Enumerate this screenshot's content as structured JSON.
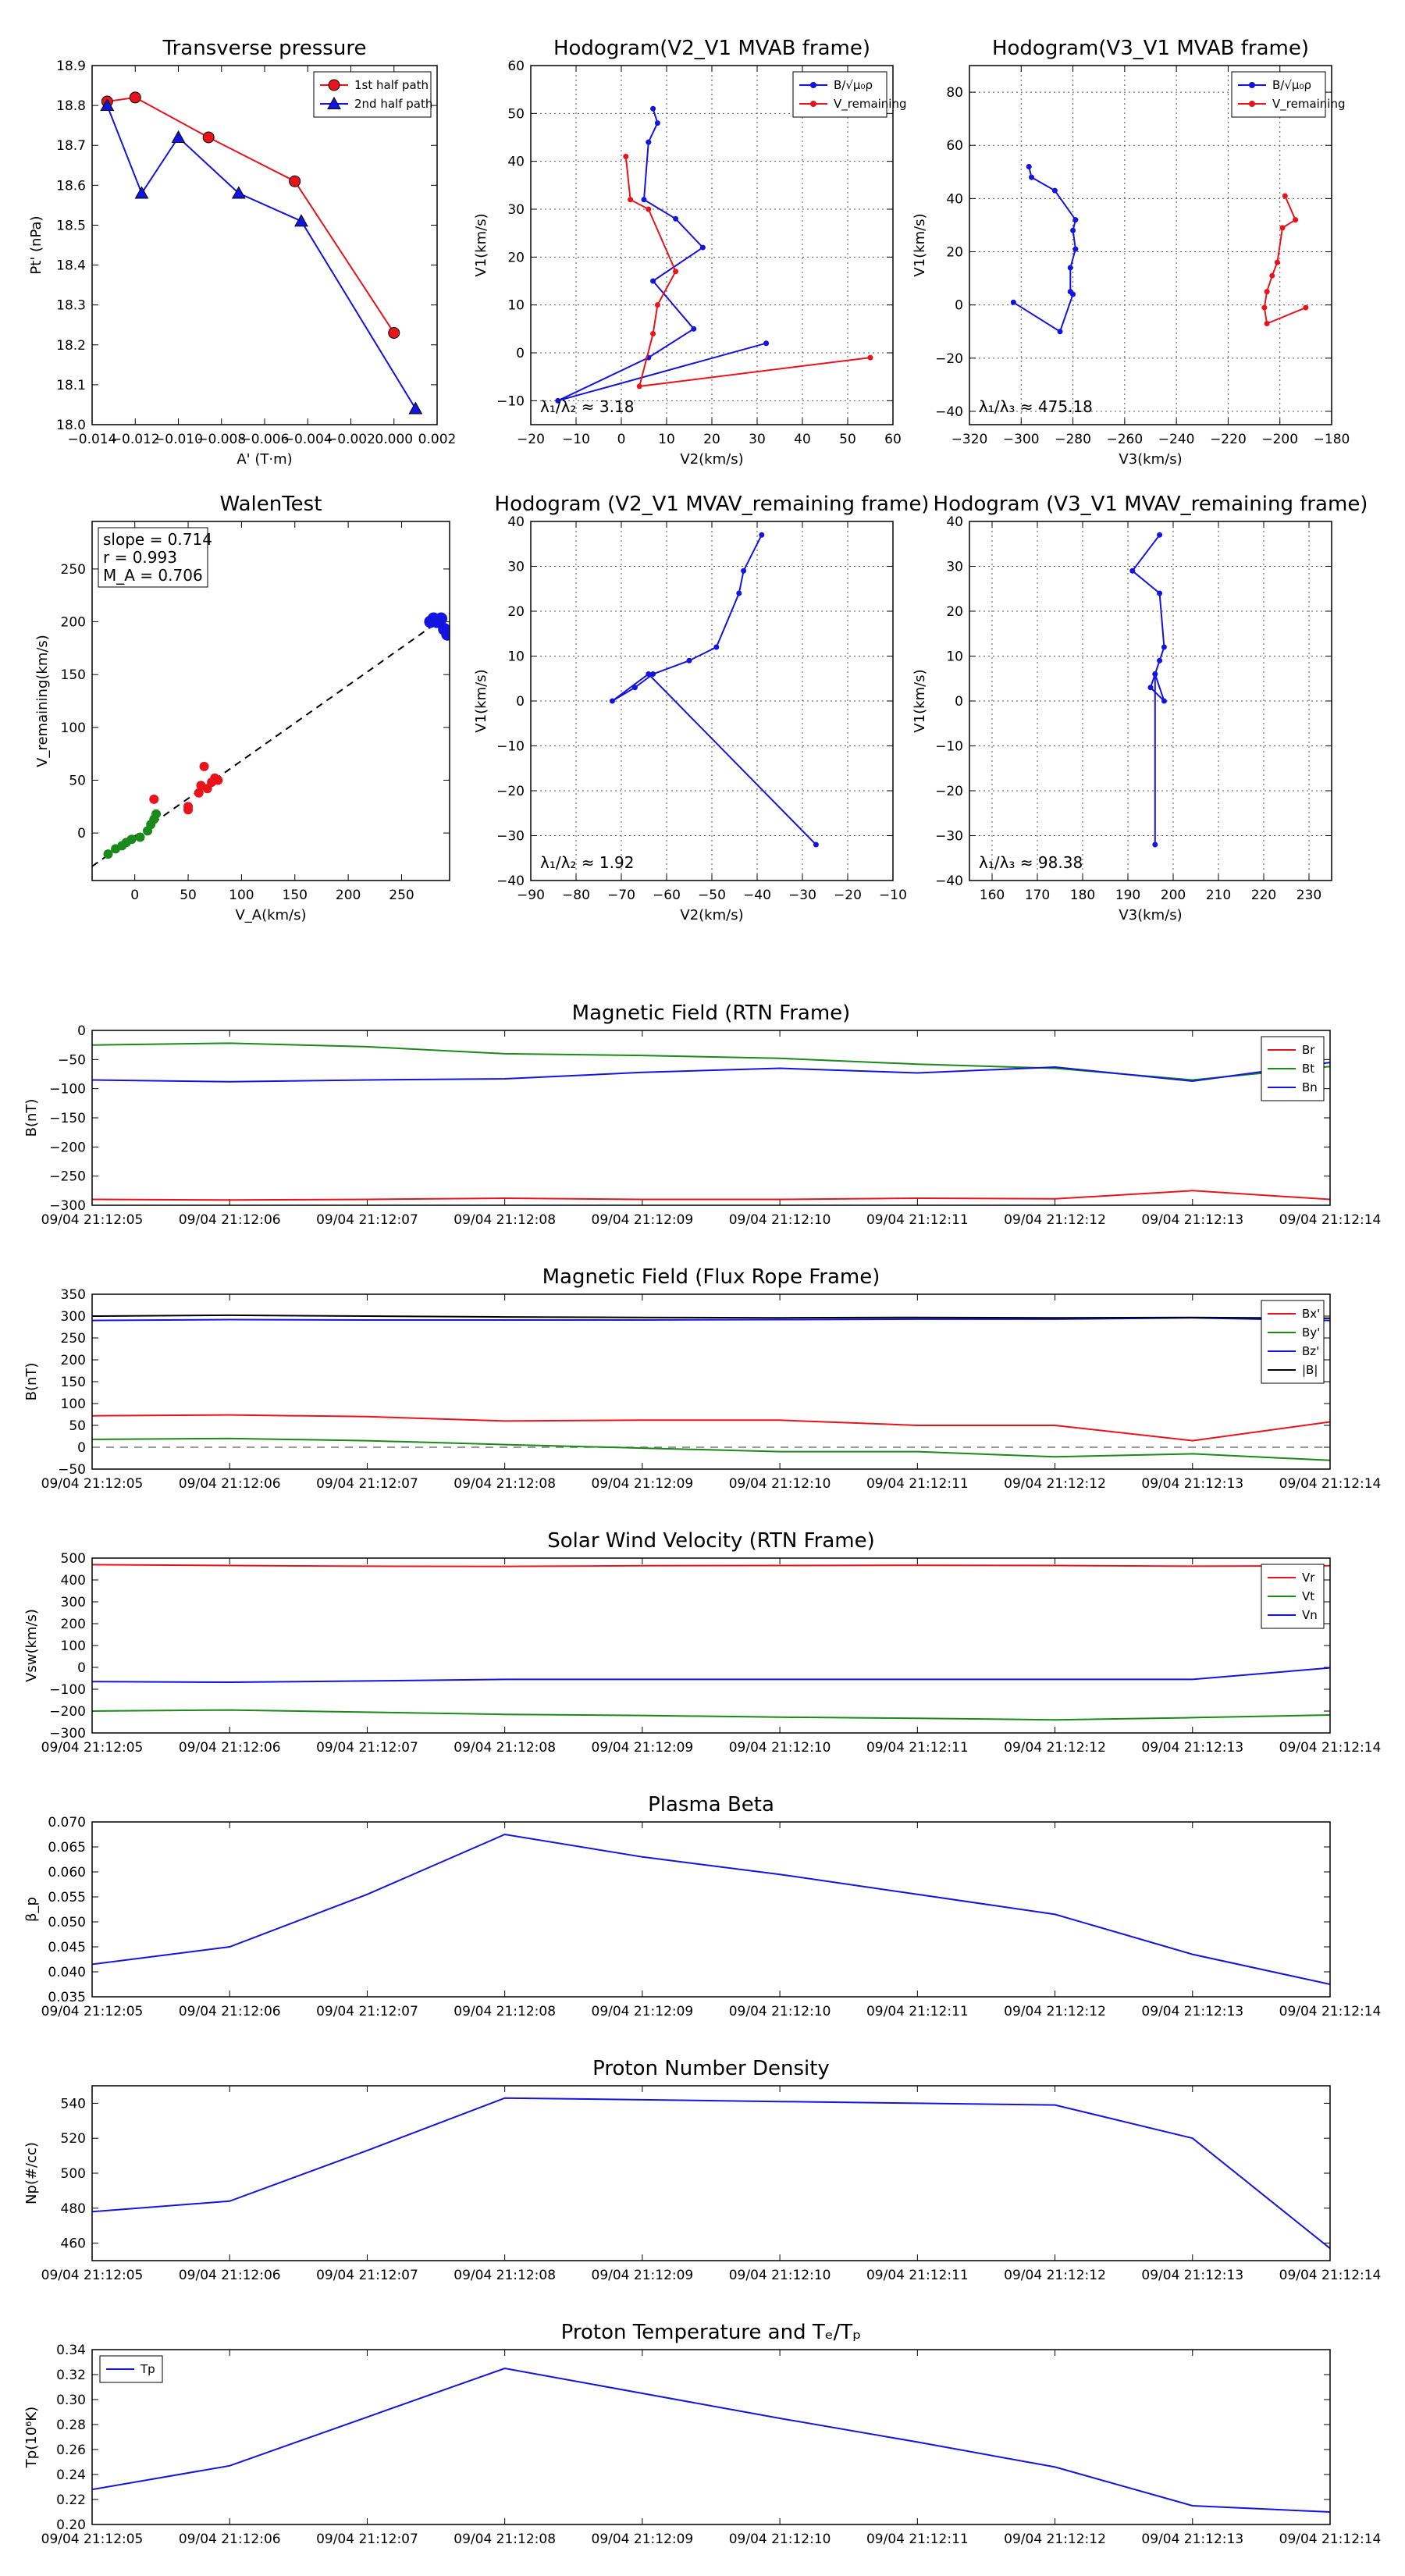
{
  "figure_labels": {
    "hodo_b_legend": "B/√μ₀ρ",
    "hodo_v_legend": "V_remaining"
  },
  "colors": {
    "red": "#e8141b",
    "green": "#1a8a1a",
    "blue": "#1414e0",
    "black": "#000000",
    "gray": "#777777"
  },
  "time_ticks": [
    "09/04 21:12:05",
    "09/04 21:12:06",
    "09/04 21:12:07",
    "09/04 21:12:08",
    "09/04 21:12:09",
    "09/04 21:12:10",
    "09/04 21:12:11",
    "09/04 21:12:12",
    "09/04 21:12:13",
    "09/04 21:12:14"
  ],
  "chart_data": [
    {
      "id": "transverse",
      "type": "line",
      "title": "Transverse pressure",
      "xlabel": "A' (T·m)",
      "ylabel": "Pt' (nPa)",
      "xlim": [
        -0.014,
        0.002
      ],
      "ylim": [
        18.0,
        18.9
      ],
      "xticks": [
        "−0.014",
        "−0.012",
        "−0.010",
        "−0.008",
        "−0.006",
        "−0.004",
        "−0.002",
        "0.000",
        "0.002"
      ],
      "yticks": [
        "18.0",
        "18.1",
        "18.2",
        "18.3",
        "18.4",
        "18.5",
        "18.6",
        "18.7",
        "18.8",
        "18.9"
      ],
      "legend": "top-right",
      "series": [
        {
          "name": "1st half path",
          "color": "#e8141b",
          "marker": "circle",
          "x": [
            -0.0133,
            -0.012,
            -0.0086,
            -0.0046,
            0.0
          ],
          "y": [
            18.81,
            18.82,
            18.72,
            18.61,
            18.23
          ]
        },
        {
          "name": "2nd half path",
          "color": "#1414e0",
          "marker": "triangle",
          "x": [
            -0.0133,
            -0.0117,
            -0.01,
            -0.0072,
            -0.0043,
            0.001
          ],
          "y": [
            18.8,
            18.58,
            18.72,
            18.58,
            18.51,
            18.04
          ]
        }
      ]
    },
    {
      "id": "hodo_v2v1_mvab",
      "type": "line",
      "title": "Hodogram(V2_V1 MVAB frame)",
      "xlabel": "V2(km/s)",
      "ylabel": "V1(km/s)",
      "xlim": [
        -20,
        60
      ],
      "ylim": [
        -15,
        60
      ],
      "xticks": [
        "−20",
        "−10",
        "0",
        "10",
        "20",
        "30",
        "40",
        "50",
        "60"
      ],
      "yticks": [
        "−10",
        "0",
        "10",
        "20",
        "30",
        "40",
        "50",
        "60"
      ],
      "legend": "top-right",
      "annotation": "λ₁/λ₂ ≈ 3.18",
      "series": [
        {
          "name": "B",
          "color": "#1414e0",
          "x": [
            7,
            8,
            6,
            5,
            12,
            18,
            7,
            16,
            6,
            -14,
            32
          ],
          "y": [
            51,
            48,
            44,
            32,
            28,
            22,
            15,
            5,
            -1,
            -10,
            2
          ]
        },
        {
          "name": "V",
          "color": "#e8141b",
          "x": [
            1,
            2,
            6,
            12,
            8,
            7,
            4,
            55
          ],
          "y": [
            41,
            32,
            30,
            17,
            10,
            4,
            -7,
            -1
          ]
        }
      ]
    },
    {
      "id": "hodo_v3v1_mvab",
      "type": "line",
      "title": "Hodogram(V3_V1 MVAB frame)",
      "xlabel": "V3(km/s)",
      "ylabel": "V1(km/s)",
      "xlim": [
        -320,
        -180
      ],
      "ylim": [
        -45,
        90
      ],
      "xticks": [
        "−320",
        "−300",
        "−280",
        "−260",
        "−240",
        "−220",
        "−200",
        "−180"
      ],
      "yticks": [
        "−40",
        "−20",
        "0",
        "20",
        "40",
        "60",
        "80"
      ],
      "legend": "top-right",
      "annotation": "λ₁/λ₃ ≈ 475.18",
      "series": [
        {
          "name": "B",
          "color": "#1414e0",
          "x": [
            -297,
            -296,
            -287,
            -279,
            -280,
            -279,
            -281,
            -281,
            -280,
            -285,
            -303
          ],
          "y": [
            52,
            48,
            43,
            32,
            28,
            21,
            14,
            5,
            4,
            -10,
            1
          ]
        },
        {
          "name": "V",
          "color": "#e8141b",
          "x": [
            -198,
            -194,
            -199,
            -201,
            -203,
            -205,
            -206,
            -205,
            -190
          ],
          "y": [
            41,
            32,
            29,
            16,
            11,
            5,
            -1,
            -7,
            -1
          ]
        }
      ]
    },
    {
      "id": "walen",
      "type": "scatter",
      "title": "WalenTest",
      "xlabel": "V_A(km/s)",
      "ylabel": "V_remaining(km/s)",
      "xlim": [
        -40,
        295
      ],
      "ylim": [
        -45,
        295
      ],
      "xticks": [
        "0",
        "50",
        "100",
        "150",
        "200",
        "250"
      ],
      "yticks": [
        "0",
        "50",
        "100",
        "150",
        "200",
        "250"
      ],
      "annotation_lines": [
        "slope = 0.714",
        "r = 0.993",
        "M_A = 0.706"
      ],
      "fit": {
        "slope": 0.714,
        "intercept": -3
      },
      "series": [
        {
          "name": "green",
          "color": "#1a8a1a",
          "x": [
            -25,
            -18,
            -12,
            -8,
            -3,
            5,
            12,
            15,
            18,
            20
          ],
          "y": [
            -20,
            -15,
            -12,
            -9,
            -6,
            -4,
            2,
            8,
            13,
            18
          ]
        },
        {
          "name": "red",
          "color": "#e8141b",
          "x": [
            18,
            50,
            50,
            60,
            62,
            65,
            68,
            72,
            75,
            78
          ],
          "y": [
            32,
            25,
            22,
            38,
            45,
            63,
            42,
            48,
            52,
            50
          ]
        },
        {
          "name": "blue",
          "color": "#1414e0",
          "x": [
            277,
            280,
            283,
            287,
            290,
            293
          ],
          "y": [
            200,
            203,
            200,
            203,
            193,
            188
          ]
        }
      ]
    },
    {
      "id": "hodo_v2v1_mvav",
      "type": "line",
      "title": "Hodogram (V2_V1 MVAV_remaining frame)",
      "xlabel": "V2(km/s)",
      "ylabel": "V1(km/s)",
      "xlim": [
        -90,
        -10
      ],
      "ylim": [
        -40,
        40
      ],
      "xticks": [
        "−90",
        "−80",
        "−70",
        "−60",
        "−50",
        "−40",
        "−30",
        "−20",
        "−10"
      ],
      "yticks": [
        "−40",
        "−30",
        "−20",
        "−10",
        "0",
        "10",
        "20",
        "30",
        "40"
      ],
      "annotation": "λ₁/λ₂ ≈ 1.92",
      "series": [
        {
          "name": "V",
          "color": "#1414e0",
          "x": [
            -39,
            -43,
            -44,
            -49,
            -55,
            -63,
            -67,
            -72,
            -64,
            -27
          ],
          "y": [
            37,
            29,
            24,
            12,
            9,
            6,
            3,
            0,
            6,
            -32
          ]
        }
      ]
    },
    {
      "id": "hodo_v3v1_mvav",
      "type": "line",
      "title": "Hodogram (V3_V1 MVAV_remaining frame)",
      "xlabel": "V3(km/s)",
      "ylabel": "V1(km/s)",
      "xlim": [
        155,
        235
      ],
      "ylim": [
        -40,
        40
      ],
      "xticks": [
        "160",
        "170",
        "180",
        "190",
        "200",
        "210",
        "220",
        "230"
      ],
      "yticks": [
        "−40",
        "−30",
        "−20",
        "−10",
        "0",
        "10",
        "20",
        "30",
        "40"
      ],
      "annotation": "λ₁/λ₃ ≈ 98.38",
      "series": [
        {
          "name": "V",
          "color": "#1414e0",
          "x": [
            197,
            191,
            197,
            198,
            197,
            196,
            195,
            198,
            196,
            196
          ],
          "y": [
            37,
            29,
            24,
            12,
            9,
            6,
            3,
            0,
            6,
            -32
          ]
        }
      ]
    },
    {
      "id": "bfield_rtn",
      "type": "line",
      "title": "Magnetic Field (RTN Frame)",
      "ylabel": "B(nT)",
      "ylim": [
        -300,
        0
      ],
      "yticks": [
        "−300",
        "−250",
        "−200",
        "−150",
        "−100",
        "−50",
        "0"
      ],
      "legend": "top-right",
      "series": [
        {
          "name": "Br",
          "color": "#e8141b",
          "values": [
            -290,
            -291,
            -290,
            -288,
            -290,
            -290,
            -288,
            -289,
            -275,
            -290
          ]
        },
        {
          "name": "Bt",
          "color": "#1a8a1a",
          "values": [
            -25,
            -22,
            -28,
            -40,
            -43,
            -48,
            -58,
            -65,
            -85,
            -62
          ]
        },
        {
          "name": "Bn",
          "color": "#1414e0",
          "values": [
            -85,
            -88,
            -85,
            -83,
            -72,
            -65,
            -73,
            -63,
            -87,
            -55
          ]
        }
      ]
    },
    {
      "id": "bfield_fr",
      "type": "line",
      "title": "Magnetic Field (Flux Rope Frame)",
      "ylabel": "B(nT)",
      "ylim": [
        -50,
        350
      ],
      "yticks": [
        "−50",
        "0",
        "50",
        "100",
        "150",
        "200",
        "250",
        "300",
        "350"
      ],
      "legend": "top-right",
      "zero_line": true,
      "series": [
        {
          "name": "Bx'",
          "color": "#e8141b",
          "values": [
            72,
            74,
            70,
            60,
            62,
            62,
            50,
            50,
            15,
            58
          ]
        },
        {
          "name": "By'",
          "color": "#1a8a1a",
          "values": [
            18,
            20,
            15,
            6,
            -2,
            -10,
            -10,
            -22,
            -15,
            -30
          ]
        },
        {
          "name": "Bz'",
          "color": "#1414e0",
          "values": [
            290,
            292,
            291,
            291,
            291,
            292,
            293,
            293,
            296,
            290
          ]
        },
        {
          "name": "|B|",
          "color": "#000000",
          "values": [
            300,
            302,
            300,
            298,
            297,
            296,
            297,
            296,
            297,
            295
          ]
        }
      ]
    },
    {
      "id": "vsw",
      "type": "line",
      "title": "Solar Wind Velocity (RTN Frame)",
      "ylabel": "Vsw(km/s)",
      "ylim": [
        -300,
        500
      ],
      "yticks": [
        "−300",
        "−200",
        "−100",
        "0",
        "100",
        "200",
        "300",
        "400",
        "500"
      ],
      "legend": "top-right",
      "series": [
        {
          "name": "Vr",
          "color": "#e8141b",
          "values": [
            470,
            466,
            463,
            462,
            465,
            466,
            467,
            466,
            463,
            465
          ]
        },
        {
          "name": "Vt",
          "color": "#1a8a1a",
          "values": [
            -200,
            -195,
            -205,
            -215,
            -220,
            -228,
            -233,
            -240,
            -230,
            -218
          ]
        },
        {
          "name": "Vn",
          "color": "#1414e0",
          "values": [
            -65,
            -68,
            -62,
            -55,
            -55,
            -55,
            -55,
            -55,
            -55,
            -2
          ]
        }
      ]
    },
    {
      "id": "beta",
      "type": "line",
      "title": "Plasma Beta",
      "ylabel": "β_p",
      "ylim": [
        0.035,
        0.07
      ],
      "yticks": [
        "0.035",
        "0.040",
        "0.045",
        "0.050",
        "0.055",
        "0.060",
        "0.065",
        "0.070"
      ],
      "series": [
        {
          "name": "beta",
          "color": "#1414e0",
          "values": [
            0.0415,
            0.045,
            0.0555,
            0.0675,
            0.063,
            0.0595,
            0.0555,
            0.0515,
            0.0435,
            0.0375
          ]
        }
      ]
    },
    {
      "id": "np",
      "type": "line",
      "title": "Proton Number Density",
      "ylabel": "Np(#/cc)",
      "ylim": [
        450,
        550
      ],
      "yticks": [
        "460",
        "480",
        "500",
        "520",
        "540"
      ],
      "series": [
        {
          "name": "Np",
          "color": "#1414e0",
          "values": [
            478,
            484,
            513,
            543,
            542,
            541,
            540,
            539,
            520,
            457
          ]
        }
      ]
    },
    {
      "id": "tp",
      "type": "line",
      "title": "Proton Temperature and Tₑ/Tₚ",
      "ylabel": "Tp(10⁶K)",
      "ylim": [
        0.2,
        0.34
      ],
      "yticks": [
        "0.20",
        "0.22",
        "0.24",
        "0.26",
        "0.28",
        "0.30",
        "0.32",
        "0.34"
      ],
      "legend": "top-left",
      "series": [
        {
          "name": "Tp",
          "color": "#1414e0",
          "values": [
            0.228,
            0.247,
            0.286,
            0.325,
            0.305,
            0.285,
            0.266,
            0.246,
            0.215,
            0.21
          ]
        }
      ]
    }
  ]
}
